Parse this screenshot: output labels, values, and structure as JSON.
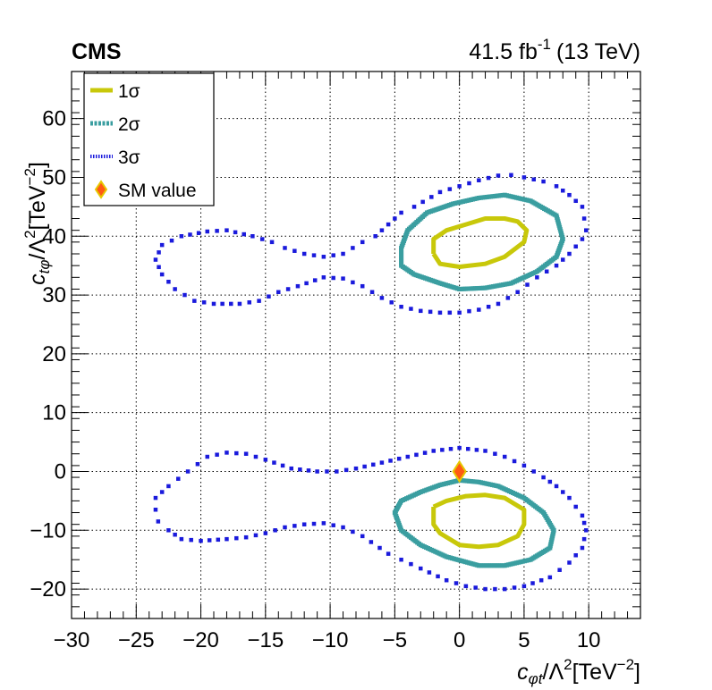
{
  "header": {
    "experiment": "CMS",
    "lumi_value": "41.5 fb",
    "lumi_exp": "-1",
    "energy": "(13 TeV)"
  },
  "colors": {
    "one_sigma": "#c8c80a",
    "two_sigma": "#3a9ea0",
    "three_sigma": "#1a1adc",
    "sm_fill": "#ff5a14",
    "sm_edge": "#e6c800"
  },
  "chart_data": {
    "type": "scatter",
    "xlim": [
      -30,
      14
    ],
    "ylim": [
      -25,
      68
    ],
    "xticks": [
      -30,
      -25,
      -20,
      -15,
      -10,
      -5,
      0,
      5,
      10
    ],
    "xtick_labels": [
      "−30",
      "−25",
      "−20",
      "−15",
      "−10",
      "−5",
      "0",
      "5",
      "10"
    ],
    "yticks": [
      -20,
      -10,
      0,
      10,
      20,
      30,
      40,
      50,
      60
    ],
    "ytick_labels": [
      "−20",
      "−10",
      "0",
      "10",
      "20",
      "30",
      "40",
      "50",
      "60"
    ],
    "grid": true,
    "legend_position": "top-left",
    "xlabel": {
      "c": "c",
      "sub": "φt",
      "mid": "/Λ",
      "sup1": "2",
      "unit": "[TeV",
      "sup2": "−2",
      "end": "]"
    },
    "ylabel": {
      "c": "c",
      "sub": "tφ",
      "mid": "/Λ",
      "sup1": "2",
      "unit": "[TeV",
      "sup2": "−2",
      "end": "]"
    },
    "legend": [
      {
        "label": "1σ",
        "style": "one_sigma"
      },
      {
        "label": "2σ",
        "style": "two_sigma"
      },
      {
        "label": "3σ",
        "style": "three_sigma"
      },
      {
        "label": "SM value",
        "style": "sm"
      }
    ],
    "sm_point": {
      "x": 0,
      "y": 0
    },
    "contours": {
      "one_sigma_upper": [
        [
          -2.0,
          37.0
        ],
        [
          -2.0,
          39.5
        ],
        [
          -1.0,
          41.0
        ],
        [
          0.5,
          42.0
        ],
        [
          2.0,
          43.0
        ],
        [
          3.5,
          43.0
        ],
        [
          4.5,
          42.5
        ],
        [
          5.2,
          41.0
        ],
        [
          5.0,
          39.0
        ],
        [
          3.5,
          36.5
        ],
        [
          2.0,
          35.3
        ],
        [
          0.0,
          34.8
        ],
        [
          -1.5,
          35.3
        ],
        [
          -2.0,
          37.0
        ]
      ],
      "one_sigma_lower": [
        [
          -2.0,
          -6.0
        ],
        [
          -1.0,
          -5.0
        ],
        [
          0.5,
          -4.2
        ],
        [
          2.0,
          -4.0
        ],
        [
          3.5,
          -4.5
        ],
        [
          5.0,
          -6.5
        ],
        [
          5.0,
          -9.0
        ],
        [
          4.5,
          -11.0
        ],
        [
          3.0,
          -12.5
        ],
        [
          1.5,
          -12.8
        ],
        [
          0.0,
          -12.5
        ],
        [
          -1.5,
          -10.5
        ],
        [
          -2.0,
          -9.0
        ],
        [
          -2.0,
          -6.0
        ]
      ],
      "two_sigma_upper": [
        [
          -4.5,
          36.5
        ],
        [
          -4.5,
          35.0
        ],
        [
          -3.5,
          33.5
        ],
        [
          -1.5,
          32.0
        ],
        [
          0.0,
          31.0
        ],
        [
          2.0,
          31.2
        ],
        [
          4.0,
          32.0
        ],
        [
          6.0,
          34.0
        ],
        [
          7.5,
          36.5
        ],
        [
          8.0,
          39.5
        ],
        [
          7.5,
          43.5
        ],
        [
          5.5,
          46.0
        ],
        [
          3.5,
          47.0
        ],
        [
          1.5,
          46.5
        ],
        [
          -0.5,
          45.5
        ],
        [
          -2.5,
          44.0
        ],
        [
          -4.0,
          41.0
        ],
        [
          -4.5,
          38.0
        ],
        [
          -4.5,
          36.5
        ]
      ],
      "two_sigma_lower": [
        [
          -5.0,
          -7.0
        ],
        [
          -4.5,
          -5.0
        ],
        [
          -3.0,
          -3.5
        ],
        [
          -1.5,
          -2.3
        ],
        [
          0.0,
          -1.5
        ],
        [
          1.5,
          -1.8
        ],
        [
          3.0,
          -2.5
        ],
        [
          5.0,
          -4.5
        ],
        [
          6.5,
          -7.0
        ],
        [
          7.3,
          -10.0
        ],
        [
          7.0,
          -13.0
        ],
        [
          5.5,
          -15.0
        ],
        [
          3.5,
          -16.0
        ],
        [
          1.5,
          -16.0
        ],
        [
          -1.0,
          -14.5
        ],
        [
          -3.0,
          -12.5
        ],
        [
          -4.5,
          -10.0
        ],
        [
          -5.0,
          -7.0
        ]
      ],
      "three_sigma_upper": [
        [
          3.0,
          50.3
        ],
        [
          4.0,
          50.4
        ],
        [
          5.0,
          50.0
        ],
        [
          6.5,
          49.3
        ],
        [
          7.5,
          48.5
        ],
        [
          8.5,
          47.0
        ],
        [
          9.5,
          45.0
        ],
        [
          9.8,
          41.0
        ],
        [
          9.5,
          39.5
        ],
        [
          8.5,
          37.0
        ],
        [
          7.5,
          35.0
        ],
        [
          6.0,
          33.0
        ],
        [
          4.5,
          30.5
        ],
        [
          3.0,
          28.5
        ],
        [
          1.5,
          27.5
        ],
        [
          0.0,
          27.0
        ],
        [
          -1.5,
          27.0
        ],
        [
          -3.0,
          27.3
        ],
        [
          -4.5,
          28.0
        ],
        [
          -6.0,
          29.5
        ],
        [
          -7.5,
          31.5
        ],
        [
          -9.0,
          32.8
        ],
        [
          -10.5,
          33.0
        ],
        [
          -12.5,
          31.5
        ],
        [
          -14.0,
          30.5
        ],
        [
          -15.5,
          29.0
        ],
        [
          -17.0,
          28.5
        ],
        [
          -19.0,
          28.5
        ],
        [
          -20.5,
          29.0
        ],
        [
          -22.0,
          31.0
        ],
        [
          -23.0,
          33.5
        ],
        [
          -23.5,
          36.0
        ],
        [
          -23.0,
          38.5
        ],
        [
          -21.5,
          40.0
        ],
        [
          -19.5,
          40.8
        ],
        [
          -18.0,
          41.0
        ],
        [
          -16.0,
          40.0
        ],
        [
          -14.5,
          39.0
        ],
        [
          -13.5,
          38.0
        ],
        [
          -12.0,
          37.0
        ],
        [
          -10.5,
          36.5
        ],
        [
          -9.0,
          37.0
        ],
        [
          -7.5,
          39.0
        ],
        [
          -6.5,
          40.0
        ],
        [
          -5.5,
          42.0
        ],
        [
          -4.5,
          44.0
        ],
        [
          -3.5,
          45.0
        ],
        [
          -1.5,
          47.5
        ],
        [
          0.0,
          48.5
        ],
        [
          1.5,
          49.5
        ],
        [
          3.0,
          50.3
        ]
      ],
      "three_sigma_lower": [
        [
          -23.5,
          -6.5
        ],
        [
          -23.5,
          -4.5
        ],
        [
          -22.5,
          -2.5
        ],
        [
          -21.0,
          0.0
        ],
        [
          -19.5,
          2.5
        ],
        [
          -18.0,
          3.2
        ],
        [
          -16.5,
          3.0
        ],
        [
          -15.0,
          2.0
        ],
        [
          -13.0,
          0.5
        ],
        [
          -11.0,
          0.0
        ],
        [
          -9.5,
          0.0
        ],
        [
          -8.0,
          0.5
        ],
        [
          -6.0,
          1.5
        ],
        [
          -4.0,
          2.5
        ],
        [
          -2.0,
          3.5
        ],
        [
          0.0,
          4.0
        ],
        [
          2.0,
          3.5
        ],
        [
          3.5,
          2.5
        ],
        [
          5.0,
          1.0
        ],
        [
          6.5,
          -1.0
        ],
        [
          7.5,
          -2.5
        ],
        [
          8.5,
          -4.5
        ],
        [
          9.5,
          -7.5
        ],
        [
          9.8,
          -10.0
        ],
        [
          9.5,
          -13.0
        ],
        [
          8.5,
          -15.5
        ],
        [
          7.0,
          -18.0
        ],
        [
          5.0,
          -19.5
        ],
        [
          3.5,
          -20.0
        ],
        [
          2.0,
          -20.0
        ],
        [
          0.5,
          -19.5
        ],
        [
          -1.0,
          -18.5
        ],
        [
          -3.0,
          -16.5
        ],
        [
          -4.5,
          -15.0
        ],
        [
          -5.5,
          -14.0
        ],
        [
          -7.5,
          -11.0
        ],
        [
          -9.0,
          -9.5
        ],
        [
          -10.5,
          -8.8
        ],
        [
          -12.0,
          -9.0
        ],
        [
          -13.5,
          -9.5
        ],
        [
          -15.0,
          -10.5
        ],
        [
          -16.5,
          -11.2
        ],
        [
          -18.0,
          -11.5
        ],
        [
          -20.0,
          -11.8
        ],
        [
          -21.5,
          -11.5
        ],
        [
          -22.5,
          -10.0
        ],
        [
          -23.3,
          -8.5
        ],
        [
          -23.5,
          -6.5
        ]
      ]
    }
  }
}
